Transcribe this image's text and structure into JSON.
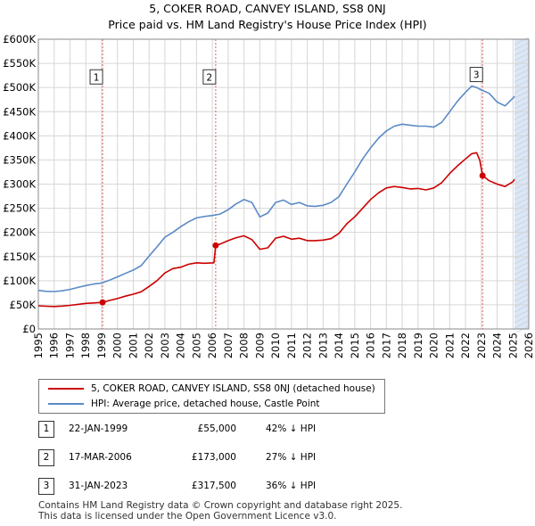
{
  "title": {
    "line1": "5, COKER ROAD, CANVEY ISLAND, SS8 0NJ",
    "line2": "Price paid vs. HM Land Registry's House Price Index (HPI)"
  },
  "colors": {
    "price_line": "#cc0000",
    "hpi_line": "#5b8ac6",
    "future_shade": "#dde6f3",
    "sale_marker": "#cc0000",
    "vline": "#e06060"
  },
  "chart_data": {
    "type": "line",
    "title": "Price paid vs. HM Land Registry's House Price Index (HPI)",
    "xlim": [
      1995,
      2026
    ],
    "ylim": [
      0,
      600000
    ],
    "x_ticks": [
      1995,
      1996,
      1997,
      1998,
      1999,
      2000,
      2001,
      2002,
      2003,
      2004,
      2005,
      2006,
      2007,
      2008,
      2009,
      2010,
      2011,
      2012,
      2013,
      2014,
      2015,
      2016,
      2017,
      2018,
      2019,
      2020,
      2021,
      2022,
      2023,
      2024,
      2025,
      2026
    ],
    "y_ticks": [
      0,
      50000,
      100000,
      150000,
      200000,
      250000,
      300000,
      350000,
      400000,
      450000,
      500000,
      550000,
      600000
    ],
    "y_tick_labels": [
      "£0",
      "£50K",
      "£100K",
      "£150K",
      "£200K",
      "£250K",
      "£300K",
      "£350K",
      "£400K",
      "£450K",
      "£500K",
      "£550K",
      "£600K"
    ],
    "future_region": [
      2025.1,
      2026
    ],
    "series": [
      {
        "name": "5, COKER ROAD, CANVEY ISLAND, SS8 0NJ (detached house)",
        "color": "#cc0000",
        "x": [
          1995,
          1995.5,
          1996,
          1996.5,
          1997,
          1997.5,
          1998,
          1998.5,
          1999.06,
          1999.5,
          2000,
          2000.5,
          2001,
          2001.5,
          2002,
          2002.5,
          2003,
          2003.5,
          2004,
          2004.5,
          2005,
          2005.5,
          2006.1,
          2006.21,
          2006.5,
          2007,
          2007.5,
          2008,
          2008.5,
          2009,
          2009.5,
          2010,
          2010.5,
          2011,
          2011.5,
          2012,
          2012.5,
          2013,
          2013.5,
          2014,
          2014.5,
          2015,
          2015.5,
          2016,
          2016.5,
          2017,
          2017.5,
          2018,
          2018.5,
          2019,
          2019.5,
          2020,
          2020.5,
          2021,
          2021.5,
          2022,
          2022.4,
          2022.7,
          2022.9,
          2023.08,
          2023.5,
          2024,
          2024.5,
          2025,
          2025.1
        ],
        "y": [
          48000,
          47000,
          46500,
          47500,
          49000,
          51000,
          53000,
          54000,
          55000,
          59000,
          63000,
          68000,
          72000,
          77000,
          88000,
          100000,
          116000,
          125000,
          128000,
          134000,
          137000,
          136000,
          137000,
          173000,
          176000,
          183000,
          189000,
          193000,
          185000,
          165000,
          168000,
          188000,
          192000,
          186000,
          188000,
          183000,
          183000,
          184000,
          187000,
          198000,
          218000,
          232000,
          250000,
          268000,
          282000,
          292000,
          295000,
          293000,
          290000,
          291000,
          288000,
          292000,
          303000,
          322000,
          338000,
          352000,
          363000,
          365000,
          350000,
          317500,
          307000,
          300000,
          295000,
          305000,
          310000
        ]
      },
      {
        "name": "HPI: Average price, detached house, Castle Point",
        "color": "#5b8ac6",
        "x": [
          1995,
          1995.5,
          1996,
          1996.5,
          1997,
          1997.5,
          1998,
          1998.5,
          1999,
          1999.5,
          2000,
          2000.5,
          2001,
          2001.5,
          2002,
          2002.5,
          2003,
          2003.5,
          2004,
          2004.5,
          2005,
          2005.5,
          2006,
          2006.5,
          2007,
          2007.5,
          2008,
          2008.5,
          2009,
          2009.5,
          2010,
          2010.5,
          2011,
          2011.5,
          2012,
          2012.5,
          2013,
          2013.5,
          2014,
          2014.5,
          2015,
          2015.5,
          2016,
          2016.5,
          2017,
          2017.5,
          2018,
          2018.5,
          2019,
          2019.5,
          2020,
          2020.5,
          2021,
          2021.5,
          2022,
          2022.4,
          2022.7,
          2023,
          2023.5,
          2024,
          2024.5,
          2025,
          2025.1
        ],
        "y": [
          80000,
          78000,
          77500,
          79000,
          82000,
          86000,
          90000,
          93000,
          95000,
          101000,
          108000,
          115000,
          122000,
          131000,
          151000,
          170000,
          190000,
          200000,
          212000,
          222000,
          230000,
          233000,
          235000,
          238000,
          247000,
          259000,
          268000,
          262000,
          232000,
          240000,
          262000,
          267000,
          258000,
          262000,
          255000,
          254000,
          256000,
          262000,
          274000,
          300000,
          325000,
          352000,
          375000,
          395000,
          410000,
          420000,
          424000,
          422000,
          420000,
          420000,
          418000,
          428000,
          450000,
          472000,
          490000,
          503000,
          500000,
          495000,
          488000,
          470000,
          462000,
          478000,
          482000
        ]
      }
    ],
    "sales": [
      {
        "label": "1",
        "x": 1999.06,
        "y": 55000,
        "box_y": 522000
      },
      {
        "label": "2",
        "x": 2006.21,
        "y": 173000,
        "box_y": 522000
      },
      {
        "label": "3",
        "x": 2023.08,
        "y": 317500,
        "box_y": 527000
      }
    ]
  },
  "legend": {
    "items": [
      {
        "label": "5, COKER ROAD, CANVEY ISLAND, SS8 0NJ (detached house)",
        "color": "#cc0000"
      },
      {
        "label": "HPI: Average price, detached house, Castle Point",
        "color": "#5b8ac6"
      }
    ]
  },
  "sales_table": [
    {
      "num": "1",
      "date": "22-JAN-1999",
      "price": "£55,000",
      "hpi": "42% ↓ HPI"
    },
    {
      "num": "2",
      "date": "17-MAR-2006",
      "price": "£173,000",
      "hpi": "27% ↓ HPI"
    },
    {
      "num": "3",
      "date": "31-JAN-2023",
      "price": "£317,500",
      "hpi": "36% ↓ HPI"
    }
  ],
  "footer": {
    "line1": "Contains HM Land Registry data © Crown copyright and database right 2025.",
    "line2": "This data is licensed under the Open Government Licence v3.0."
  }
}
